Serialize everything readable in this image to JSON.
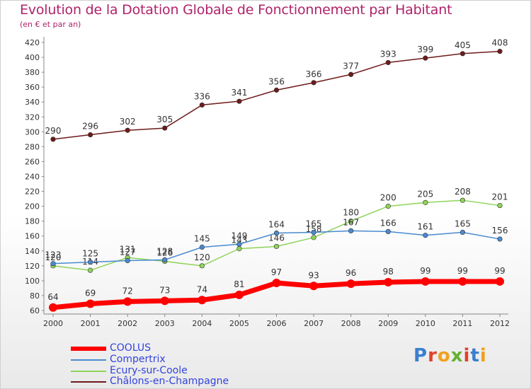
{
  "title": "Evolution de la Dotation Globale de Fonctionnement par Habitant",
  "subtitle": "(en € et par an)",
  "logo_text": "Proxiti",
  "chart_data": {
    "type": "line",
    "x": [
      "2000",
      "2001",
      "2002",
      "2003",
      "2004",
      "2005",
      "2006",
      "2007",
      "2008",
      "2009",
      "2010",
      "2011",
      "2012"
    ],
    "ylim": [
      60,
      420
    ],
    "yticks": [
      60,
      80,
      100,
      120,
      140,
      160,
      180,
      200,
      220,
      240,
      260,
      280,
      300,
      320,
      340,
      360,
      380,
      400,
      420
    ],
    "grid": false,
    "legend_position": "bottom-left",
    "series": [
      {
        "name": "COOLUS",
        "color": "#ff0000",
        "values": [
          64,
          69,
          72,
          73,
          74,
          81,
          97,
          93,
          96,
          98,
          99,
          99,
          99
        ]
      },
      {
        "name": "Compertrix",
        "color": "#4a8ad0",
        "values": [
          123,
          125,
          127,
          128,
          145,
          149,
          164,
          165,
          167,
          166,
          161,
          165,
          156
        ]
      },
      {
        "name": "Ecury-sur-Coole",
        "color": "#8fd45a",
        "values": [
          120,
          114,
          131,
          126,
          120,
          143,
          146,
          158,
          180,
          200,
          205,
          208,
          201
        ]
      },
      {
        "name": "Châlons-en-Champagne",
        "color": "#6e1a1a",
        "values": [
          290,
          296,
          302,
          305,
          336,
          341,
          356,
          366,
          377,
          393,
          399,
          405,
          408
        ]
      }
    ]
  }
}
